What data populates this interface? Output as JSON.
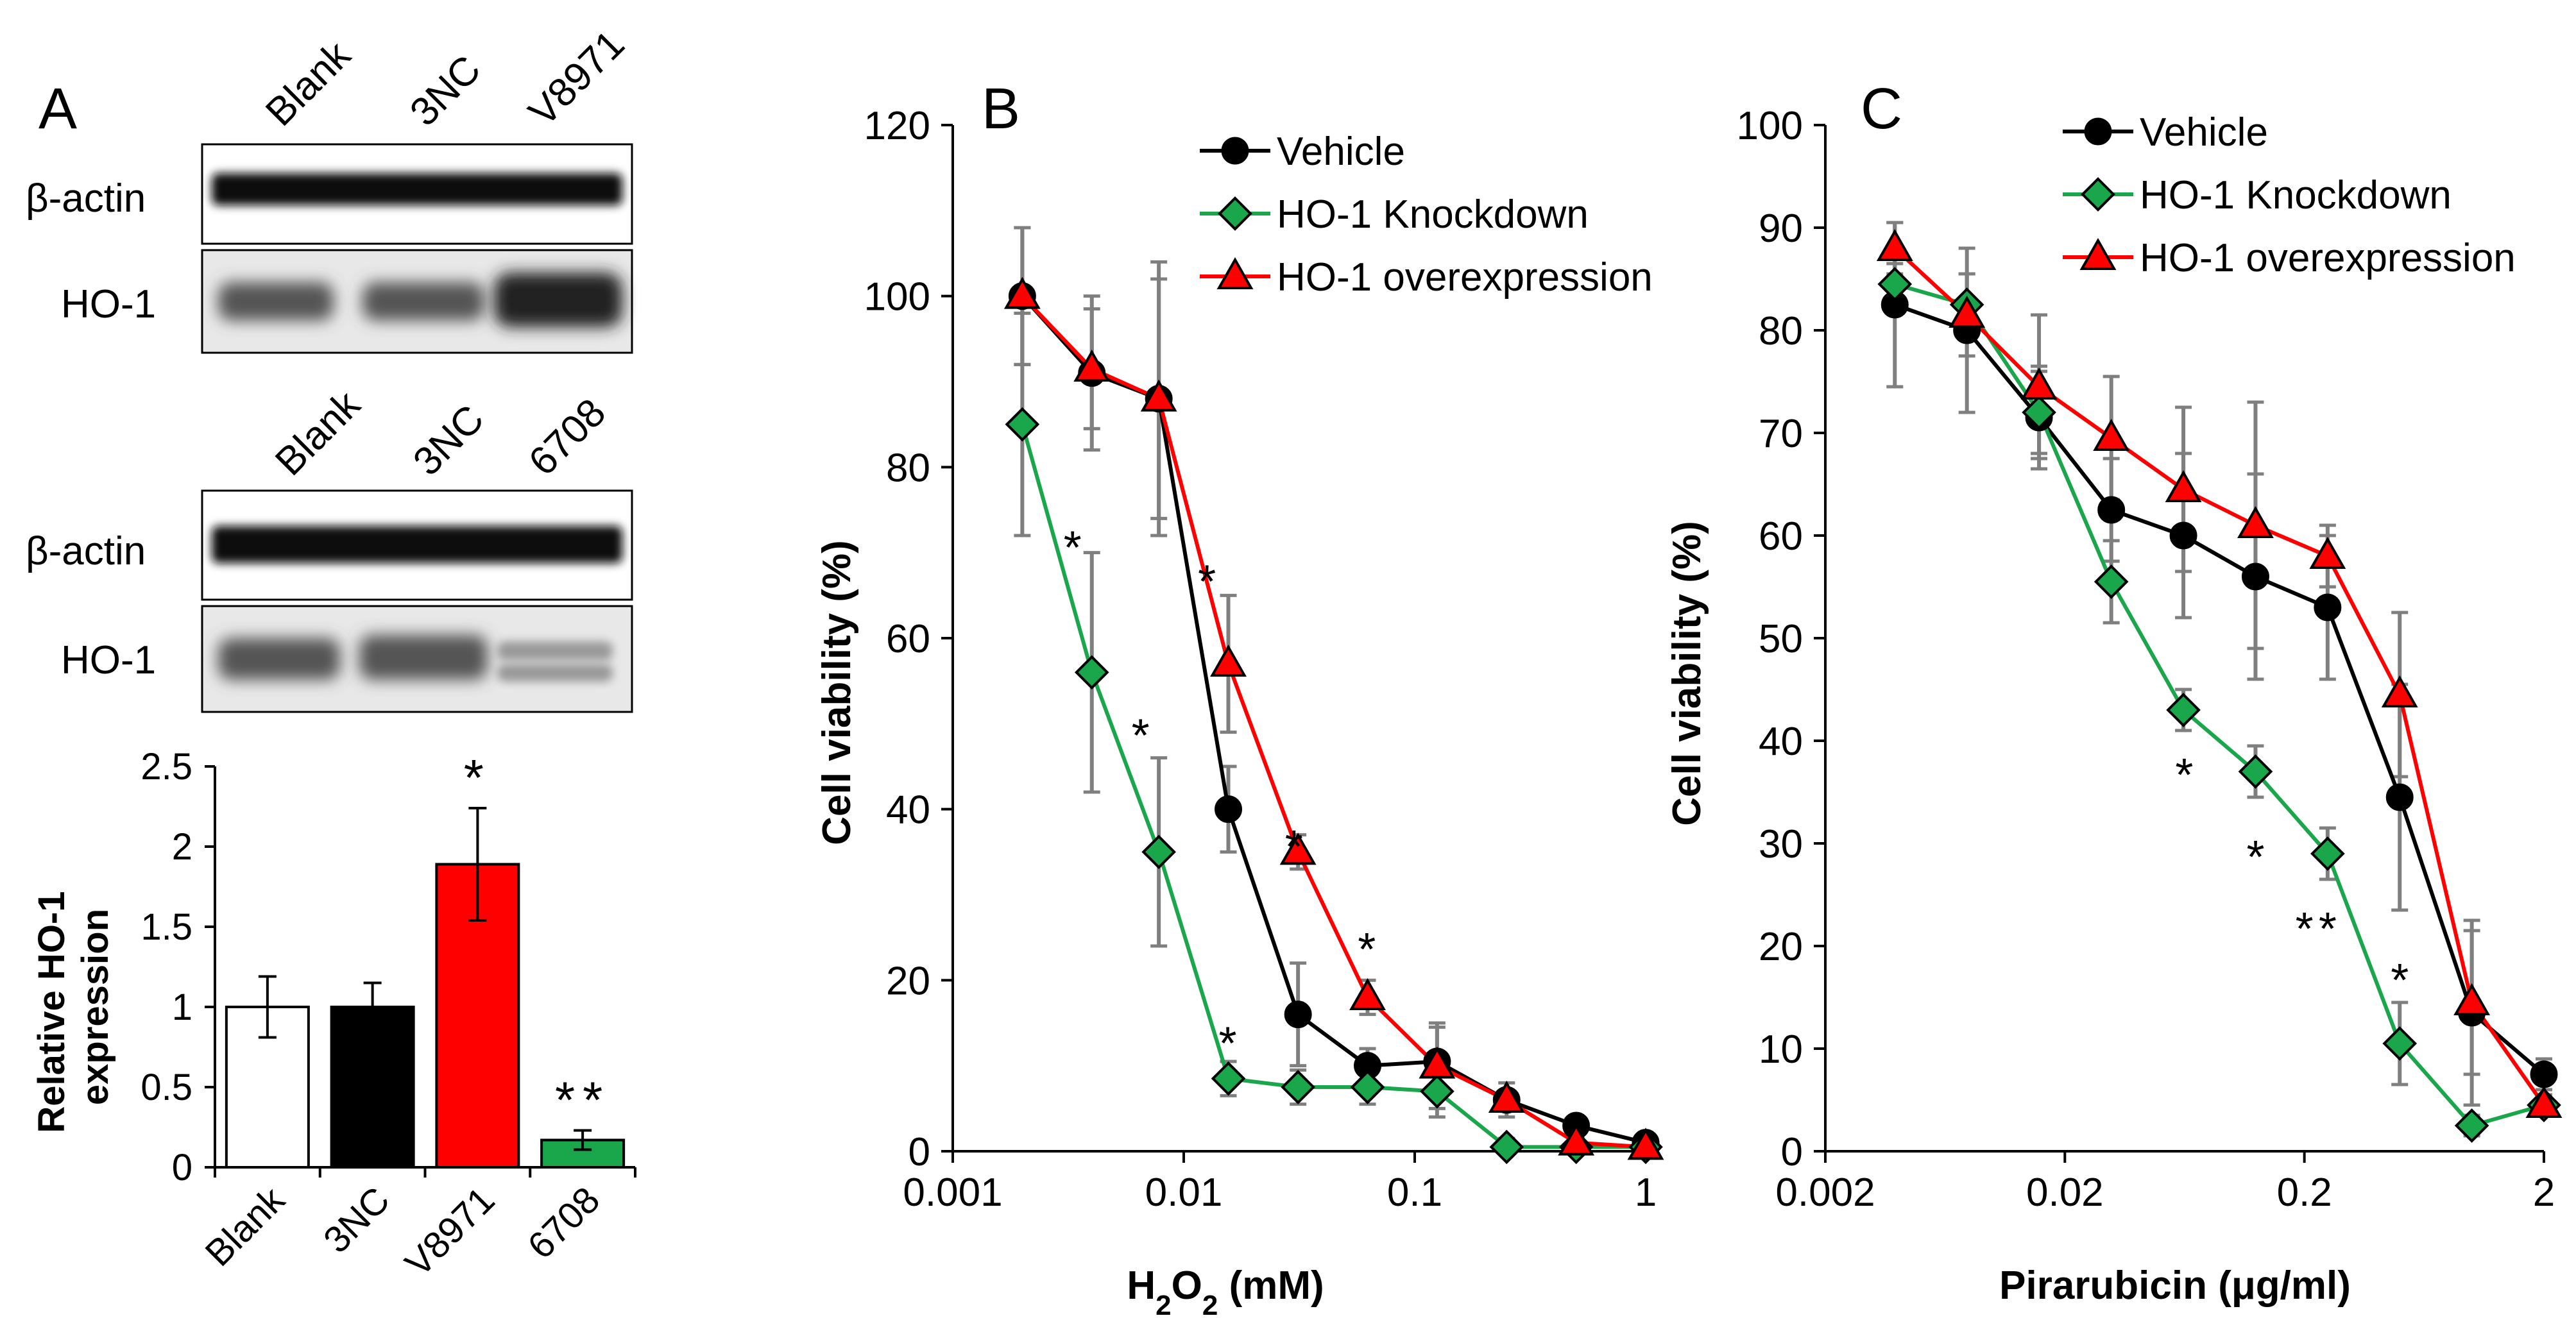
{
  "chart_data": [
    {
      "panel": "A",
      "type": "blot+bar",
      "blots": [
        {
          "lanes": [
            "Blank",
            "3NC",
            "V8971"
          ],
          "rows": [
            "β-actin",
            "HO-1"
          ]
        },
        {
          "lanes": [
            "Blank",
            "3NC",
            "6708"
          ],
          "rows": [
            "β-actin",
            "HO-1"
          ]
        }
      ],
      "bar": {
        "categories": [
          "Blank",
          "3NC",
          "V8971",
          "6708"
        ],
        "values": [
          1.0,
          1.0,
          1.89,
          0.17
        ],
        "errors": [
          0.19,
          0.15,
          0.35,
          0.06
        ],
        "colors": [
          "#ffffff",
          "#000000",
          "#ff0000",
          "#1aa64a"
        ],
        "significance": [
          "",
          "",
          "*",
          "**"
        ],
        "ylabel_line1": "Relative HO-1",
        "ylabel_line2": "expression",
        "ylim": [
          0,
          2.5
        ],
        "yticks": [
          "0",
          "0.5",
          "1",
          "1.5",
          "2",
          "2.5"
        ]
      }
    },
    {
      "panel": "B",
      "type": "line",
      "xscale": "log",
      "xlabel_main": "H",
      "xlabel_sub": "2",
      "xlabel_mid": "O",
      "xlabel_sub2": "2",
      "xlabel_tail": " (mM)",
      "ylabel": "Cell viability (%)",
      "xlim": [
        0.001,
        1
      ],
      "ylim": [
        0,
        120
      ],
      "xticks": [
        0.001,
        0.01,
        0.1,
        1
      ],
      "xtick_labels": [
        "0.001",
        "0.01",
        "0.1",
        "1"
      ],
      "yticks": [
        "0",
        "20",
        "40",
        "60",
        "80",
        "100",
        "120"
      ],
      "x": [
        0.002,
        0.004,
        0.0078,
        0.0156,
        0.03125,
        0.0625,
        0.125,
        0.25,
        0.5,
        1
      ],
      "series": [
        {
          "name": "Vehicle",
          "color": "#000000",
          "marker": "circle",
          "values": [
            100,
            91,
            88,
            40,
            16,
            10,
            10.5,
            6,
            3,
            1
          ],
          "errors": [
            8,
            9,
            16,
            5,
            6,
            2,
            4,
            1,
            1,
            1
          ]
        },
        {
          "name": "HO-1  Knockdown",
          "color": "#1aa64a",
          "marker": "diamond",
          "values": [
            85,
            56,
            35,
            8.5,
            7.5,
            7.5,
            7,
            0.5,
            0.5,
            0.5
          ],
          "errors": [
            13,
            14,
            11,
            2,
            2,
            2,
            3,
            1,
            1,
            1
          ]
        },
        {
          "name": "HO-1 overexpression",
          "color": "#ff0000",
          "marker": "triangle",
          "values": [
            100,
            91.5,
            88,
            57,
            35,
            18,
            10,
            6,
            1,
            0.5
          ],
          "errors": [
            8,
            7,
            14,
            8,
            2,
            2,
            5,
            2,
            1,
            1
          ]
        }
      ],
      "annotations": [
        {
          "text": "*",
          "x": 0.0033,
          "y": 71
        },
        {
          "text": "*",
          "x": 0.0065,
          "y": 49
        },
        {
          "text": "*",
          "x": 0.0126,
          "y": 67
        },
        {
          "text": "*",
          "x": 0.0155,
          "y": 13
        },
        {
          "text": "*",
          "x": 0.03,
          "y": 36
        },
        {
          "text": "*",
          "x": 0.062,
          "y": 24
        }
      ]
    },
    {
      "panel": "C",
      "type": "line",
      "xscale": "log",
      "xlabel": "Pirarubicin (μg/ml)",
      "ylabel": "Cell viability (%)",
      "xlim": [
        0.002,
        2
      ],
      "ylim": [
        0,
        100
      ],
      "xticks": [
        0.002,
        0.02,
        0.2,
        2
      ],
      "xtick_labels": [
        "0.002",
        "0.02",
        "0.2",
        "2"
      ],
      "yticks": [
        "0",
        "10",
        "20",
        "30",
        "40",
        "50",
        "60",
        "70",
        "80",
        "90",
        "100"
      ],
      "x": [
        0.0039,
        0.0078,
        0.0156,
        0.03125,
        0.0625,
        0.125,
        0.25,
        0.5,
        1,
        2
      ],
      "series": [
        {
          "name": "Vehicle",
          "color": "#000000",
          "marker": "circle",
          "values": [
            82.5,
            80,
            71.5,
            62.5,
            60,
            56,
            53,
            34.5,
            13.5,
            7.5
          ],
          "errors": [
            8,
            8,
            5,
            5,
            8,
            10,
            7,
            11,
            9,
            1.5
          ]
        },
        {
          "name": "HO-1  Knockdown",
          "color": "#1aa64a",
          "marker": "diamond",
          "values": [
            84.5,
            82.5,
            72,
            55.5,
            43,
            37,
            29,
            10.5,
            2.5,
            4.5
          ],
          "errors": [
            2,
            3,
            4,
            4,
            2,
            2.5,
            2.5,
            4,
            1,
            1
          ]
        },
        {
          "name": "HO-1 overexpression",
          "color": "#ff0000",
          "marker": "triangle",
          "values": [
            88,
            81.5,
            74.5,
            69.5,
            64.5,
            61,
            58,
            44.5,
            14.5,
            4.5
          ],
          "errors": [
            2.5,
            4,
            7,
            6,
            8,
            12,
            3,
            8,
            7,
            1
          ]
        }
      ],
      "annotations": [
        {
          "text": "*",
          "x": 0.063,
          "y": 37
        },
        {
          "text": "*",
          "x": 0.125,
          "y": 29
        },
        {
          "text": "*",
          "x": 0.2,
          "y": 22
        },
        {
          "text": "*",
          "x": 0.25,
          "y": 22
        },
        {
          "text": "*",
          "x": 0.5,
          "y": 17
        }
      ]
    }
  ]
}
